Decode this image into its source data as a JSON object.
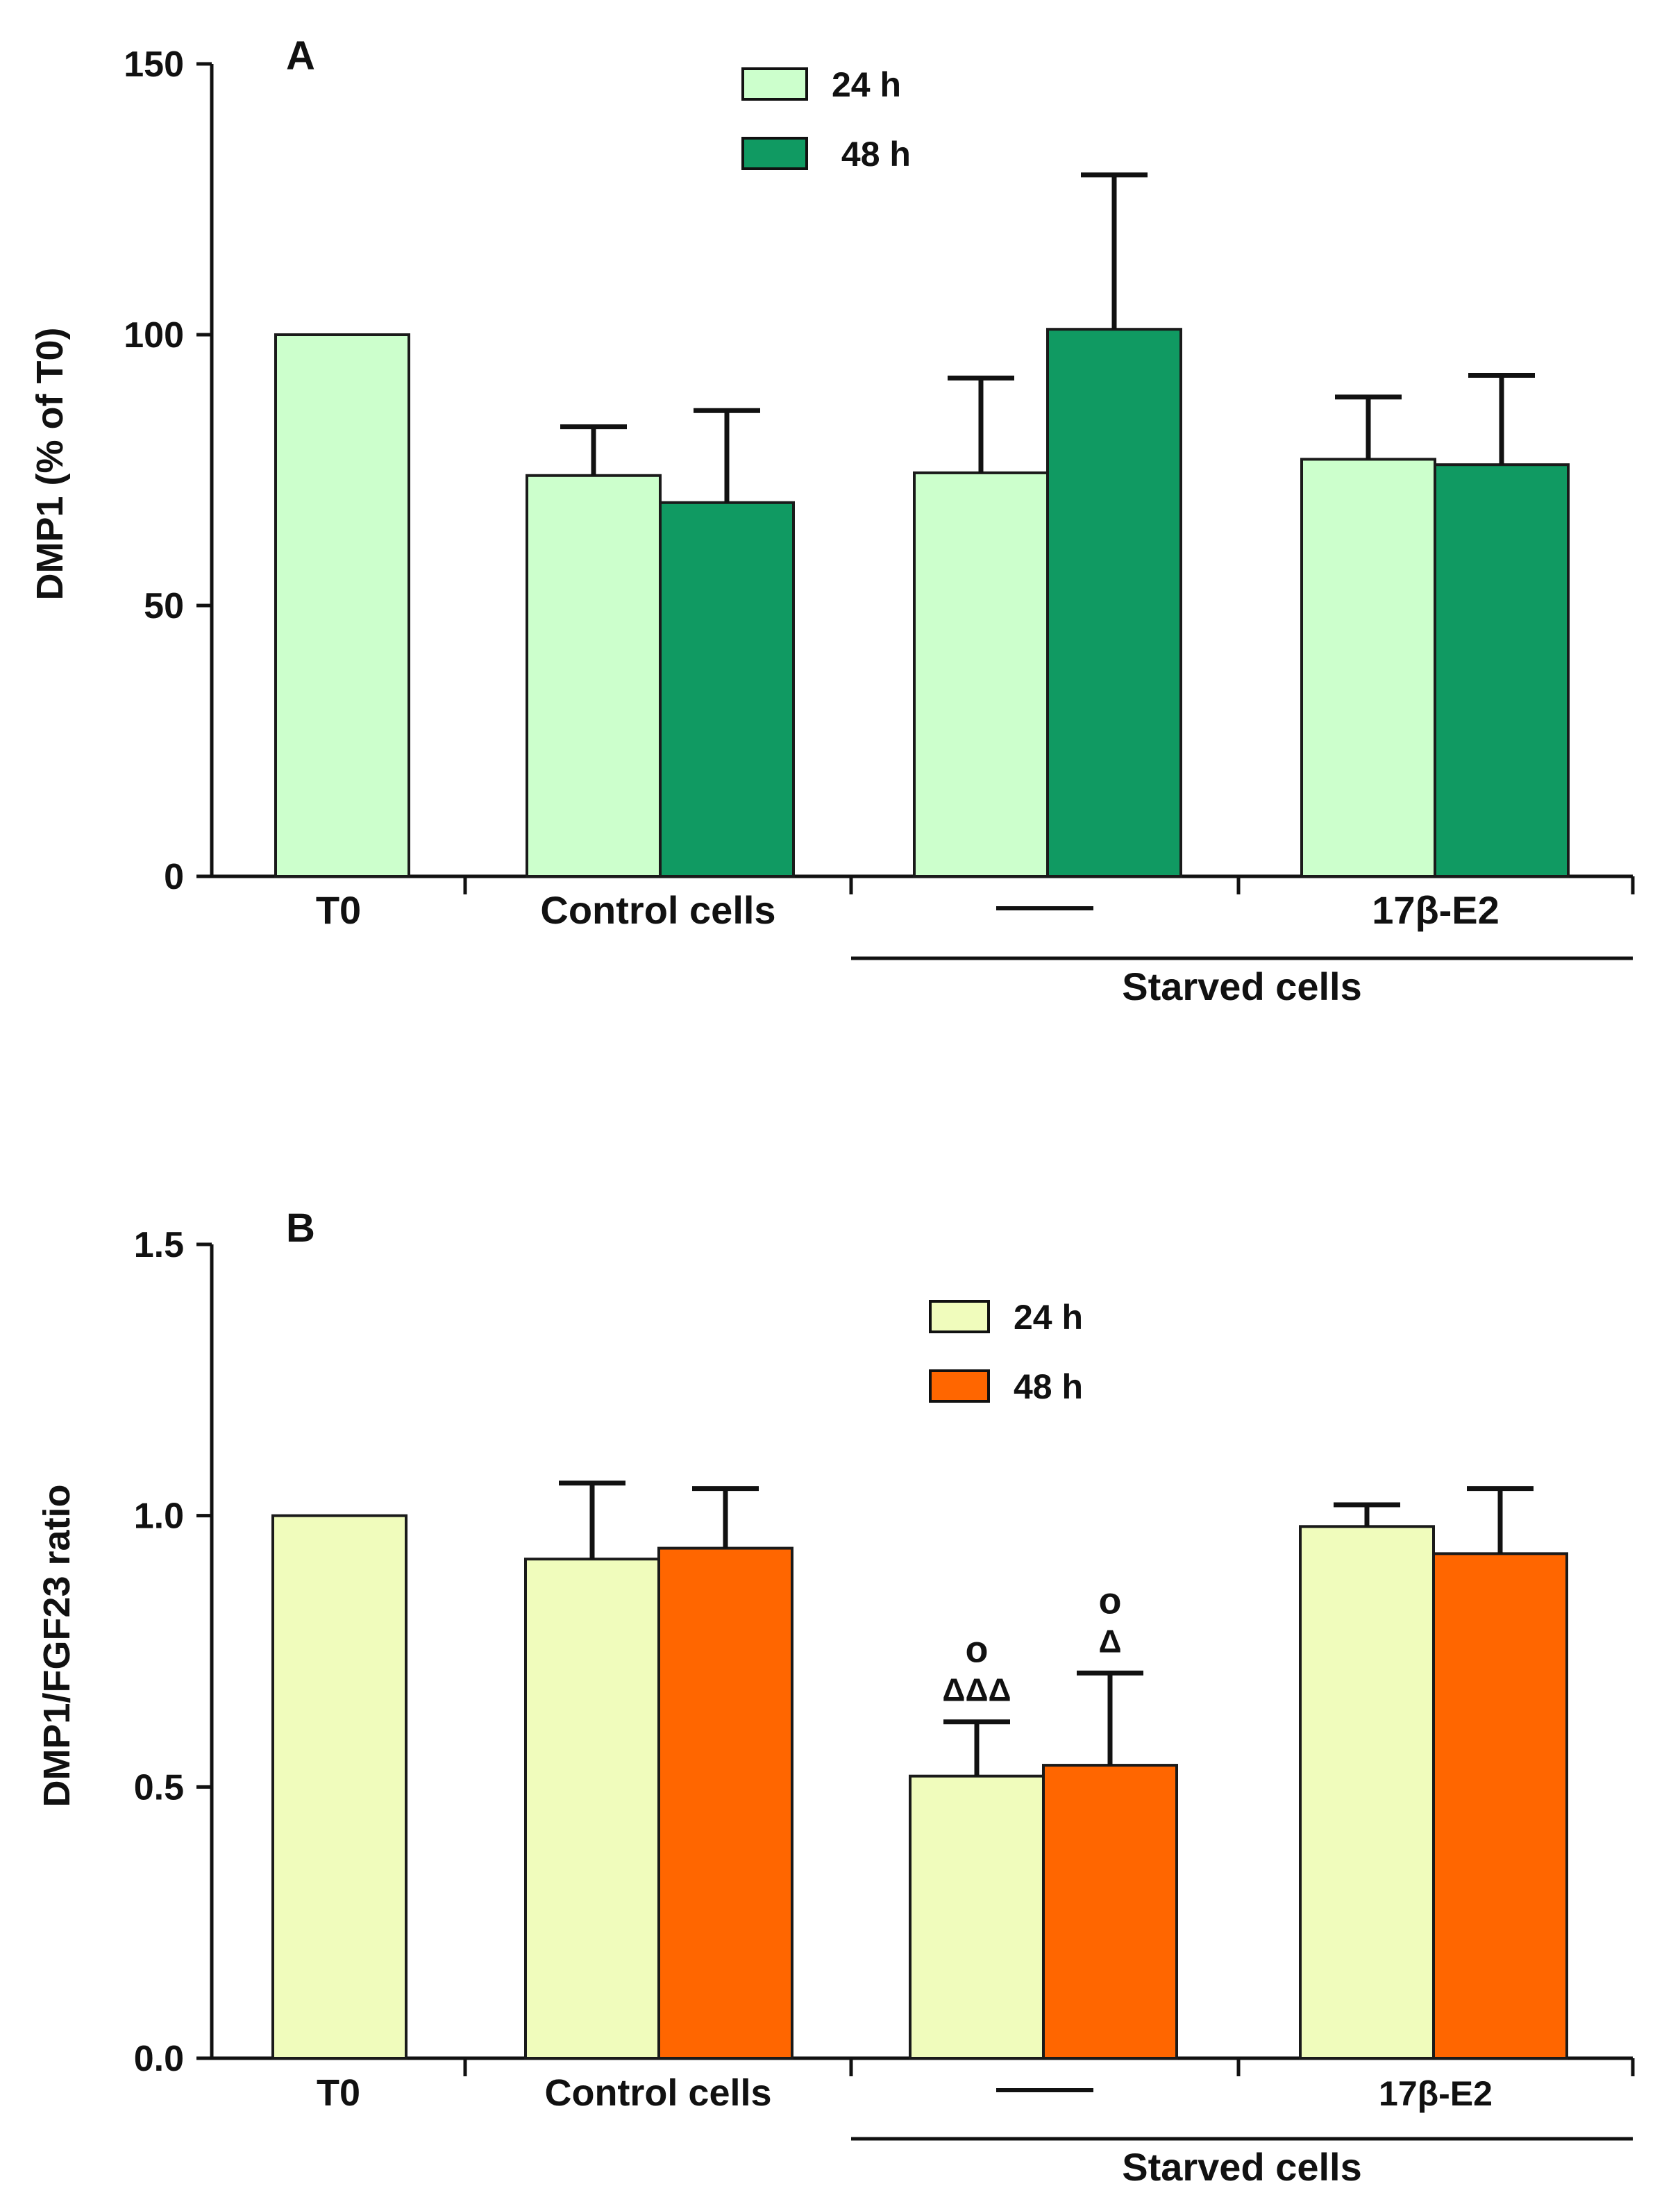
{
  "chart_data": [
    {
      "panel": "A",
      "type": "bar",
      "title": "",
      "ylabel": "DMP1 (% of T0)",
      "ylim": [
        0,
        150
      ],
      "yticks": [
        0,
        50,
        100,
        150
      ],
      "ytick_labels": [
        "0",
        "50",
        "100",
        "150"
      ],
      "grid": false,
      "legend_position": "top-center",
      "legend": [
        {
          "label": "24 h",
          "color": "#ccffcc"
        },
        {
          "label": " 48 h",
          "color": "#109a62"
        }
      ],
      "groups": [
        {
          "label": "T0",
          "bars": [
            {
              "series": "24 h",
              "value": 100,
              "error": null,
              "annotations": []
            }
          ]
        },
        {
          "label": "Control cells",
          "bars": [
            {
              "series": "24 h",
              "value": 74,
              "error": 9,
              "annotations": []
            },
            {
              "series": "48 h",
              "value": 69,
              "error": 17,
              "annotations": []
            }
          ]
        },
        {
          "label": "—",
          "bars": [
            {
              "series": "24 h",
              "value": 74.5,
              "error": 17.5,
              "annotations": []
            },
            {
              "series": "48 h",
              "value": 101,
              "error": 28.5,
              "annotations": []
            }
          ]
        },
        {
          "label": "17β-E2",
          "bars": [
            {
              "series": "24 h",
              "value": 77,
              "error": 11.5,
              "annotations": []
            },
            {
              "series": "48 h",
              "value": 76,
              "error": 16.5,
              "annotations": []
            }
          ]
        }
      ],
      "group_bracket": {
        "label": "Starved cells",
        "from_group": 2,
        "to_group": 3
      }
    },
    {
      "panel": "B",
      "type": "bar",
      "title": "",
      "ylabel": "DMP1/FGF23 ratio",
      "ylim": [
        0,
        1.5
      ],
      "yticks": [
        0,
        0.5,
        1.0,
        1.5
      ],
      "ytick_labels": [
        "0.0",
        "0.5",
        "1.0",
        "1.5"
      ],
      "grid": false,
      "legend_position": "top-center",
      "legend": [
        {
          "label": "24 h",
          "color": "#f0fcbc"
        },
        {
          "label": "48 h",
          "color": "#ff6600"
        }
      ],
      "groups": [
        {
          "label": "T0",
          "bars": [
            {
              "series": "24 h",
              "value": 1.0,
              "error": null,
              "annotations": []
            }
          ]
        },
        {
          "label": "Control cells",
          "bars": [
            {
              "series": "24 h",
              "value": 0.92,
              "error": 0.14,
              "annotations": []
            },
            {
              "series": "48 h",
              "value": 0.94,
              "error": 0.11,
              "annotations": []
            }
          ]
        },
        {
          "label": "—",
          "bars": [
            {
              "series": "24 h",
              "value": 0.52,
              "error": 0.1,
              "annotations": [
                "ΔΔΔ",
                "o"
              ]
            },
            {
              "series": "48 h",
              "value": 0.54,
              "error": 0.17,
              "annotations": [
                "Δ",
                "o"
              ]
            }
          ]
        },
        {
          "label": "17β-E2",
          "bars": [
            {
              "series": "24 h",
              "value": 0.98,
              "error": 0.04,
              "annotations": []
            },
            {
              "series": "48 h",
              "value": 0.93,
              "error": 0.12,
              "annotations": []
            }
          ]
        }
      ],
      "group_bracket": {
        "label": "Starved cells",
        "from_group": 2,
        "to_group": 3
      }
    }
  ]
}
